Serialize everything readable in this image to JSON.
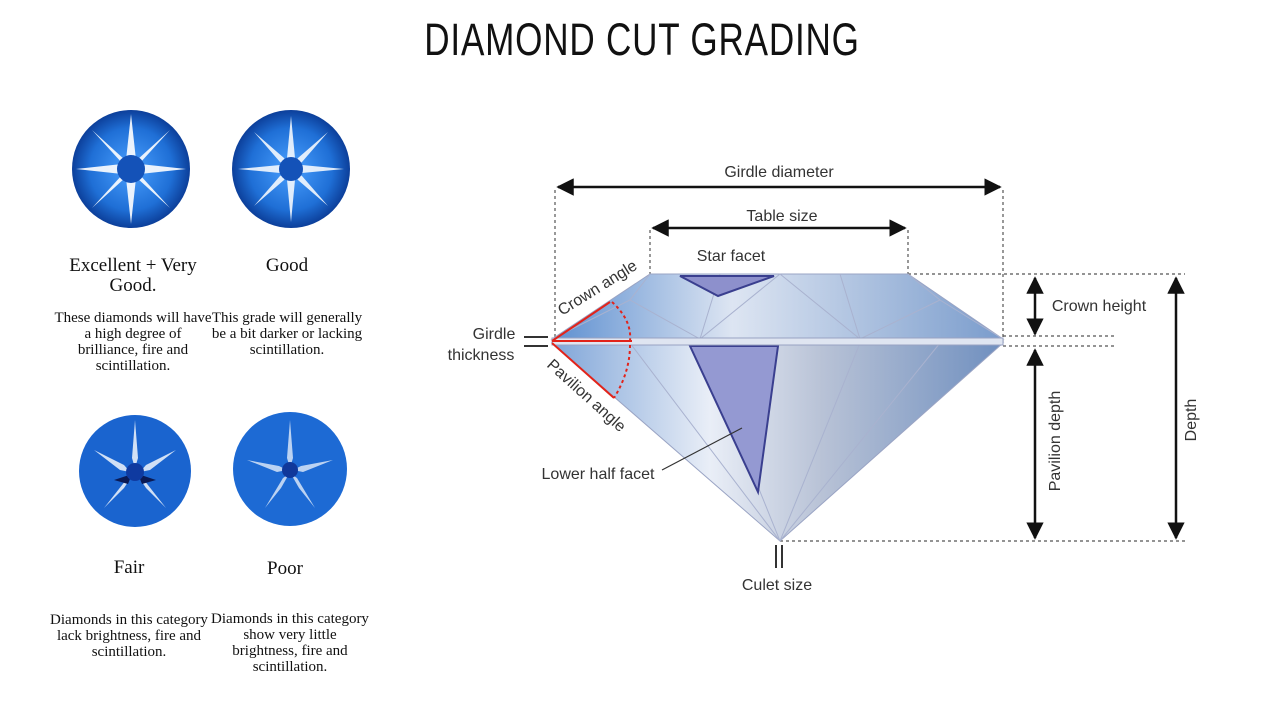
{
  "title": "DIAMOND CUT GRADING",
  "grades": [
    {
      "name": "Excellent + Very Good.",
      "description": "These diamonds will have a high degree of brilliance, fire and scintillation."
    },
    {
      "name": "Good",
      "description": "This grade will generally be a bit darker or lacking scintillation."
    },
    {
      "name": "Fair",
      "description": "Diamonds in this category lack brightness, fire and scintillation."
    },
    {
      "name": "Poor",
      "description": "Diamonds in this category show very little brightness, fire and scintillation."
    }
  ],
  "diagram": {
    "girdle_diameter": "Girdle diameter",
    "table_size": "Table size",
    "star_facet": "Star facet",
    "crown_angle": "Crown angle",
    "girdle_thickness_1": "Girdle",
    "girdle_thickness_2": "thickness",
    "pavilion_angle": "Pavilion angle",
    "lower_half_facet": "Lower half facet",
    "culet_size": "Culet size",
    "crown_height": "Crown height",
    "pavilion_depth": "Pavilion depth",
    "depth": "Depth"
  },
  "colors": {
    "gem_blue": "#1f6fd6",
    "facet_purple": "#8f93d0",
    "measure_red": "#e2231a"
  }
}
